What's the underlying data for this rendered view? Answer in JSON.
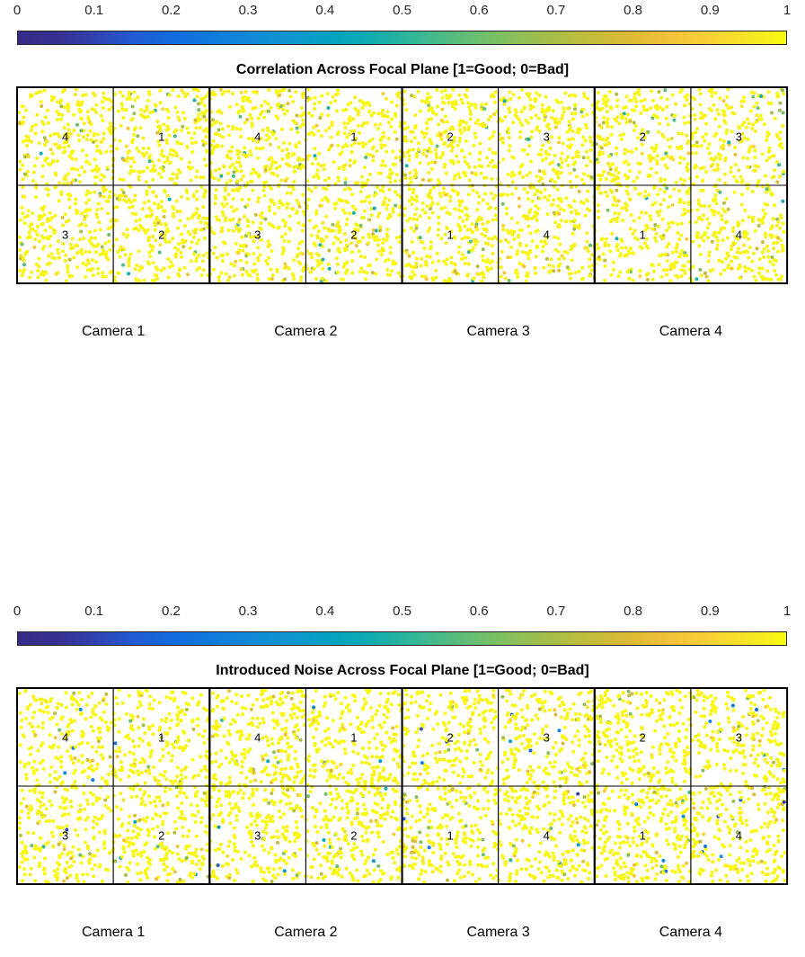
{
  "chart_data": [
    {
      "type": "scatter",
      "title": "Correlation Across Focal Plane [1=Good; 0=Bad]",
      "colorbar": {
        "range": [
          0,
          1
        ],
        "ticks": [
          "0",
          "0.1",
          "0.2",
          "0.3",
          "0.4",
          "0.5",
          "0.6",
          "0.7",
          "0.8",
          "0.9",
          "1"
        ],
        "colormap": "parula",
        "location": "top"
      },
      "cameras": [
        "Camera 1",
        "Camera 2",
        "Camera 3",
        "Camera 4"
      ],
      "ccd_layout": [
        [
          "4",
          "1",
          "3",
          "2"
        ],
        [
          "4",
          "1",
          "3",
          "2"
        ],
        [
          "2",
          "3",
          "1",
          "4"
        ],
        [
          "2",
          "3",
          "1",
          "4"
        ]
      ],
      "typical_value": 0.97,
      "value_distribution": {
        "mostly_near": 1.0,
        "few_mid": 0.6,
        "rare_low": 0.45
      },
      "grid": false
    },
    {
      "type": "scatter",
      "title": "Introduced Noise Across Focal Plane [1=Good; 0=Bad]",
      "colorbar": {
        "range": [
          0,
          1
        ],
        "ticks": [
          "0",
          "0.1",
          "0.2",
          "0.3",
          "0.4",
          "0.5",
          "0.6",
          "0.7",
          "0.8",
          "0.9",
          "1"
        ],
        "colormap": "parula",
        "location": "top"
      },
      "cameras": [
        "Camera 1",
        "Camera 2",
        "Camera 3",
        "Camera 4"
      ],
      "ccd_layout": [
        [
          "4",
          "1",
          "3",
          "2"
        ],
        [
          "4",
          "1",
          "3",
          "2"
        ],
        [
          "2",
          "3",
          "1",
          "4"
        ],
        [
          "2",
          "3",
          "1",
          "4"
        ]
      ],
      "typical_value": 0.98,
      "value_distribution": {
        "mostly_near": 1.0,
        "few_mid": 0.6,
        "rare_low": 0.05
      },
      "grid": false
    }
  ]
}
